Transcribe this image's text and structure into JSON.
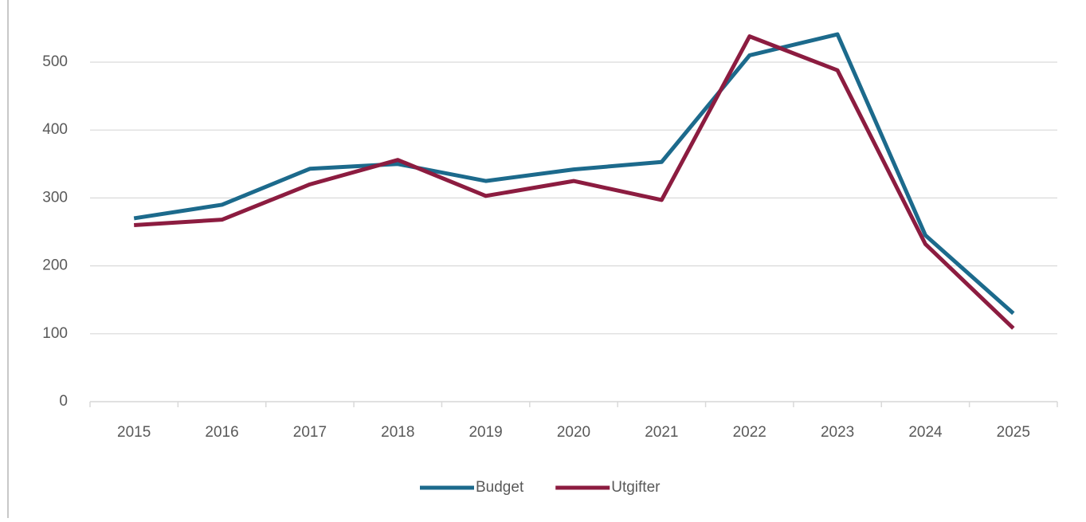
{
  "chart_data": {
    "type": "line",
    "categories": [
      "2015",
      "2016",
      "2017",
      "2018",
      "2019",
      "2020",
      "2021",
      "2022",
      "2023",
      "2024",
      "2025"
    ],
    "series": [
      {
        "name": "Budget",
        "color": "#1c6a8c",
        "values": [
          270,
          290,
          343,
          350,
          325,
          342,
          353,
          510,
          541,
          245,
          130
        ]
      },
      {
        "name": "Utgifter",
        "color": "#8c1c40",
        "values": [
          260,
          268,
          320,
          356,
          303,
          325,
          297,
          538,
          488,
          232,
          108
        ]
      }
    ],
    "ylim": [
      0,
      550
    ],
    "yticks": [
      0,
      100,
      200,
      300,
      400,
      500
    ],
    "grid": true,
    "legend": "bottom"
  }
}
